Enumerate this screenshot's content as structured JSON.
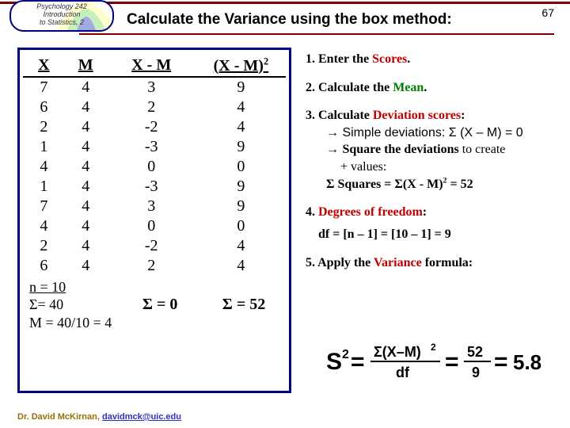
{
  "pageNumber": "67",
  "corner": {
    "line1": "Psychology 242",
    "line2": "Introduction",
    "line3": "to Statistics, 2"
  },
  "title": "Calculate the Variance using the box method:",
  "headers": {
    "x": "X",
    "m": "M",
    "xm": "X - M",
    "xm2_pre": "(X - M)",
    "xm2_sup": "2"
  },
  "rows": [
    {
      "x": "7",
      "m": "4",
      "d": "3",
      "d2": "9"
    },
    {
      "x": "6",
      "m": "4",
      "d": "2",
      "d2": "4"
    },
    {
      "x": "2",
      "m": "4",
      "d": "-2",
      "d2": "4"
    },
    {
      "x": "1",
      "m": "4",
      "d": "-3",
      "d2": "9"
    },
    {
      "x": "4",
      "m": "4",
      "d": "0",
      "d2": "0"
    },
    {
      "x": "1",
      "m": "4",
      "d": "-3",
      "d2": "9"
    },
    {
      "x": "7",
      "m": "4",
      "d": "3",
      "d2": "9"
    },
    {
      "x": "4",
      "m": "4",
      "d": "0",
      "d2": "0"
    },
    {
      "x": "2",
      "m": "4",
      "d": "-2",
      "d2": "4"
    },
    {
      "x": "6",
      "m": "4",
      "d": "2",
      "d2": "4"
    }
  ],
  "summary": {
    "n": "n = 10",
    "sum": "Σ= 40",
    "mean": "M = 40/10 = 4",
    "sigd": "Σ = 0",
    "sigd2": "Σ = 52"
  },
  "steps": {
    "s1a": "1. ",
    "s1b": "Enter the ",
    "s1c": "Scores",
    "s1d": ".",
    "s2a": "2. ",
    "s2b": "Calculate the ",
    "s2c": "Mean",
    "s2d": ".",
    "s3a": "3. ",
    "s3b": "Calculate ",
    "s3c": "Deviation scores",
    "s3d": ":",
    "s3e": "→ Simple deviations: Σ (X – M) = 0",
    "s3f": "→ ",
    "s3g": "Square the deviations",
    "s3h": " to create",
    "s3i": "+ values:",
    "s3j": "Σ Squares = Σ(X - M)",
    "s3sup": "2",
    "s3k": " = 52",
    "s4a": "4. ",
    "s4b": "Degrees of freedom",
    "s4c": ":",
    "s4d": "df = [n – 1] = [10 – 1] = 9",
    "s5a": "5. ",
    "s5b": "Apply the ",
    "s5c": "Variance",
    "s5d": " formula:"
  },
  "formula": {
    "s2": "S",
    "eq": "=",
    "numTxt": "Σ(X–M)",
    "den": "df",
    "num2": "52",
    "den2": "9",
    "res": "5.8"
  },
  "footer": {
    "name": "Dr. David McKirnan, ",
    "email": "davidmck@uic.edu"
  },
  "colors": {
    "bell1": "#ffff66",
    "bell2": "#66cc66",
    "bell3": "#3333cc"
  }
}
